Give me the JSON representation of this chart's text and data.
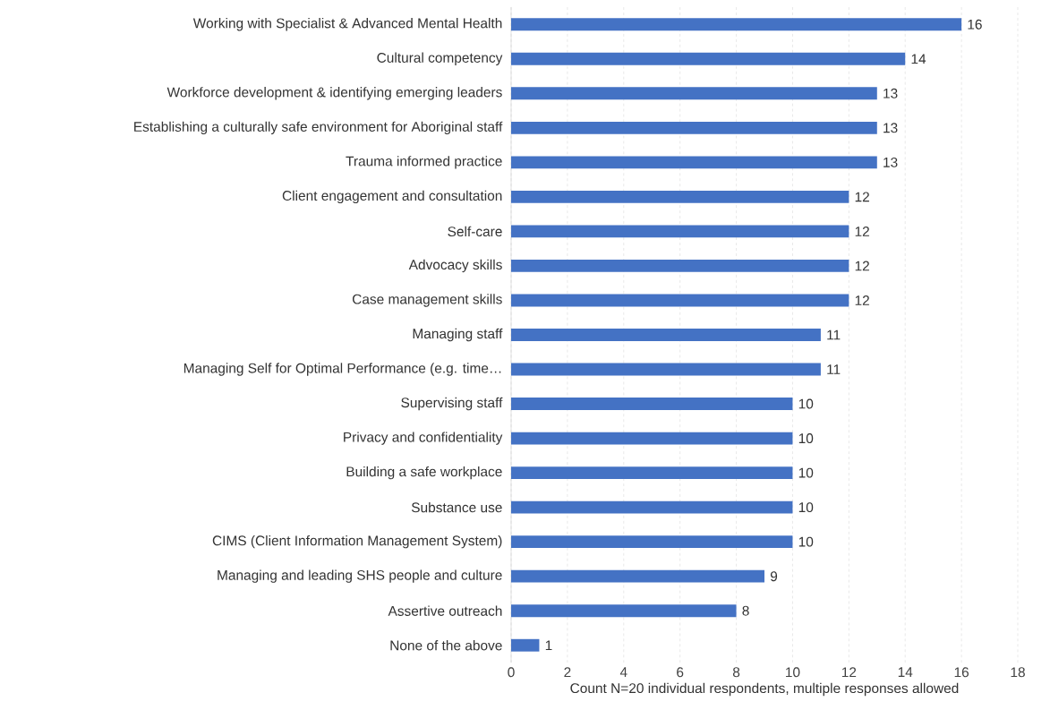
{
  "chart_data": {
    "type": "bar",
    "orientation": "horizontal",
    "categories": [
      "Working with Specialist & Advanced Mental Health",
      "Cultural competency",
      "Workforce development & identifying emerging leaders",
      "Establishing a culturally safe environment for Aboriginal staff",
      "Trauma informed practice",
      "Client engagement and consultation",
      "Self-care",
      "Advocacy skills",
      "Case management skills",
      "Managing staff",
      "Managing Self for Optimal Performance (e.g. time…",
      "Supervising staff",
      "Privacy and confidentiality",
      "Building a safe workplace",
      "Substance use",
      "CIMS (Client Information Management System)",
      "Managing and leading SHS people and culture",
      "Assertive outreach",
      "None of the above"
    ],
    "values": [
      16,
      14,
      13,
      13,
      13,
      12,
      12,
      12,
      12,
      11,
      11,
      10,
      10,
      10,
      10,
      10,
      9,
      8,
      1
    ],
    "color": "#4472c4",
    "xlim": [
      0,
      18
    ],
    "xticks": [
      0,
      2,
      4,
      6,
      8,
      10,
      12,
      14,
      16,
      18
    ],
    "xlabel": "Count N=20 individual respondents, multiple responses allowed",
    "grid": "x",
    "data_labels": true
  }
}
